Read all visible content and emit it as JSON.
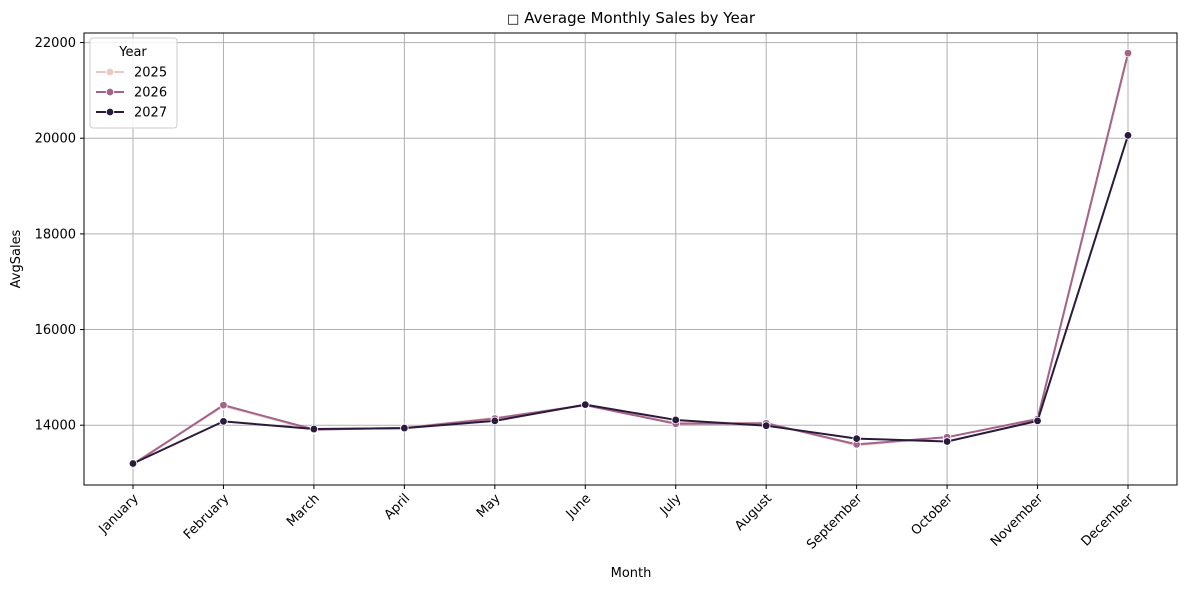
{
  "chart_data": {
    "type": "line",
    "title": "📈 Average Monthly Sales by Year",
    "title_glyph": "□",
    "title_text": "Average Monthly Sales by Year",
    "xlabel": "Month",
    "ylabel": "AvgSales",
    "categories": [
      "January",
      "February",
      "March",
      "April",
      "May",
      "June",
      "July",
      "August",
      "September",
      "October",
      "November",
      "December"
    ],
    "ylim": [
      12750,
      22200
    ],
    "yticks": [
      14000,
      16000,
      18000,
      20000,
      22000
    ],
    "grid": true,
    "legend": {
      "title": "Year",
      "placement": "top-left"
    },
    "series": [
      {
        "name": "2025",
        "color": "#ebc9c2",
        "values": [
          13200,
          14400,
          13900,
          13950,
          14150,
          14420,
          14050,
          14050,
          13580,
          13750,
          14130,
          21750
        ]
      },
      {
        "name": "2026",
        "color": "#a3648a",
        "values": [
          13180,
          14420,
          13910,
          13940,
          14140,
          14420,
          14030,
          14040,
          13600,
          13750,
          14130,
          21780
        ]
      },
      {
        "name": "2027",
        "color": "#2b1a3d",
        "values": [
          13200,
          14080,
          13920,
          13940,
          14090,
          14430,
          14110,
          13990,
          13720,
          13660,
          14090,
          20060
        ]
      }
    ]
  }
}
